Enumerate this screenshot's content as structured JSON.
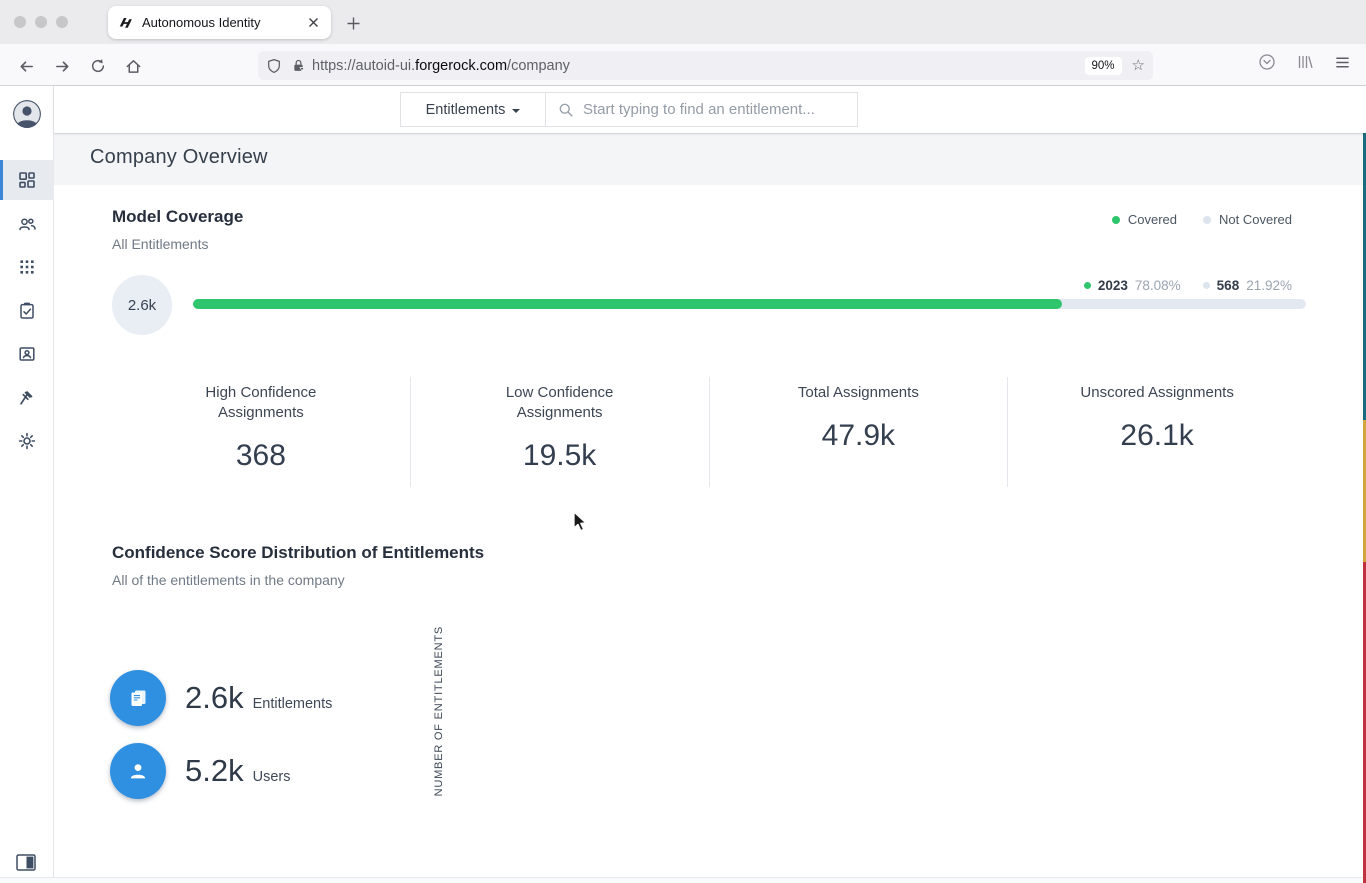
{
  "browser": {
    "tab_title": "Autonomous Identity",
    "url": {
      "prefix": "https://autoid-ui.",
      "domain": "forgerock.com",
      "path": "/company"
    },
    "zoom_level": "90%"
  },
  "app_header": {
    "scope_dropdown": "Entitlements",
    "search_placeholder": "Start typing to find an entitlement..."
  },
  "sidebar": {
    "items": [
      {
        "icon": "dashboard-icon",
        "active": true
      },
      {
        "icon": "users-icon",
        "active": false
      },
      {
        "icon": "applications-icon",
        "active": false
      },
      {
        "icon": "tasks-icon",
        "active": false
      },
      {
        "icon": "identity-badge-icon",
        "active": false
      },
      {
        "icon": "rules-gavel-icon",
        "active": false
      },
      {
        "icon": "settings-gear-icon",
        "active": false
      }
    ]
  },
  "page": {
    "title": "Company Overview"
  },
  "model_coverage": {
    "title": "Model Coverage",
    "subtitle": "All Entitlements",
    "legend": [
      {
        "label": "Covered",
        "color": "#2fc56d"
      },
      {
        "label": "Not Covered",
        "color": "#dce4ee"
      }
    ],
    "total": "2.6k",
    "bar_pct": 78.08,
    "covered": {
      "count": "2023",
      "pct": "78.08%"
    },
    "not_covered": {
      "count": "568",
      "pct": "21.92%"
    },
    "stats": [
      {
        "label": "High Confidence Assignments",
        "value": "368"
      },
      {
        "label": "Low Confidence Assignments",
        "value": "19.5k"
      },
      {
        "label": "Total Assignments",
        "value": "47.9k"
      },
      {
        "label": "Unscored Assignments",
        "value": "26.1k"
      }
    ]
  },
  "distribution": {
    "title": "Confidence Score Distribution of Entitlements",
    "subtitle": "All of the entitlements in the company",
    "y_axis_label": "NUMBER OF ENTITLEMENTS",
    "totals": [
      {
        "value": "2.6k",
        "label": "Entitlements",
        "icon": "entitlements-icon"
      },
      {
        "value": "5.2k",
        "label": "Users",
        "icon": "user-icon"
      }
    ]
  }
}
